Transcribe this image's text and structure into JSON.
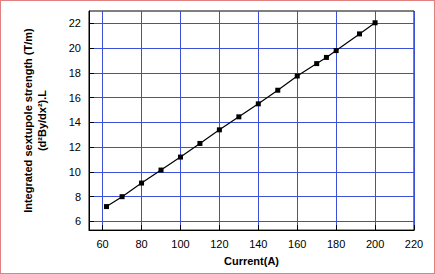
{
  "chart_data": {
    "type": "line",
    "x_label": "Current(A)",
    "y_label": "Integrated sextupole strength (T/m)\n(d²By/dx²).L",
    "x": [
      62,
      70,
      80,
      90,
      100,
      110,
      120,
      130,
      140,
      150,
      160,
      170,
      175,
      180,
      192,
      200
    ],
    "values": [
      7.2,
      8.0,
      9.1,
      10.15,
      11.2,
      12.3,
      13.4,
      14.45,
      15.5,
      16.6,
      17.75,
      18.75,
      19.25,
      19.8,
      21.15,
      22.05
    ],
    "color": "#000000",
    "marker": "square",
    "line_style": "solid",
    "xlim": [
      53,
      220
    ],
    "xticks": [
      60,
      80,
      100,
      120,
      140,
      160,
      180,
      200,
      220
    ],
    "ylim": [
      5.3,
      23
    ],
    "yticks": [
      6,
      8,
      10,
      12,
      14,
      16,
      18,
      20,
      22
    ],
    "grid": true
  }
}
